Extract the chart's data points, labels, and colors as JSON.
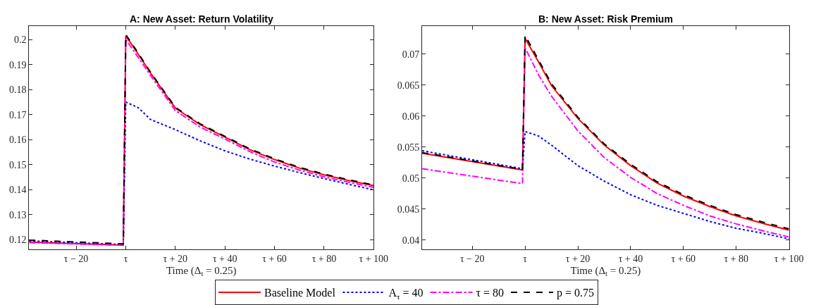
{
  "chart_data": [
    {
      "type": "line",
      "title": "A: New Asset: Return Volatility",
      "xlabel": "Time (Δ$_{t}$ = 0.25)",
      "xlim": [
        -39,
        100
      ],
      "xticks": [
        {
          "value": -20,
          "label": "τ − 20"
        },
        {
          "value": 0,
          "label": "τ"
        },
        {
          "value": 20,
          "label": "τ + 20"
        },
        {
          "value": 40,
          "label": "τ + 40"
        },
        {
          "value": 60,
          "label": "τ + 60"
        },
        {
          "value": 80,
          "label": "τ + 80"
        },
        {
          "value": 100,
          "label": "τ + 100"
        }
      ],
      "ylim": [
        0.1161,
        0.2054
      ],
      "yticks": [
        0.12,
        0.13,
        0.14,
        0.15,
        0.16,
        0.17,
        0.18,
        0.19,
        0.2
      ],
      "x": [
        -39,
        -1,
        0,
        5,
        10,
        20,
        30,
        40,
        50,
        60,
        70,
        80,
        90,
        100
      ],
      "legend": "bottom",
      "marker": "none",
      "series": [
        {
          "name": "Baseline Model",
          "color": "#ff0000",
          "line_style": "solid",
          "values": [
            0.119,
            0.1178,
            0.2015,
            0.1942,
            0.1866,
            0.1726,
            0.166,
            0.161,
            0.156,
            0.152,
            0.1486,
            0.1459,
            0.1436,
            0.1416
          ]
        },
        {
          "name": "A$_{τ}$ = 40",
          "color": "#0000ff",
          "line_style": "dotted",
          "values": [
            0.1195,
            0.118,
            0.175,
            0.1728,
            0.168,
            0.164,
            0.1595,
            0.1555,
            0.1522,
            0.1494,
            0.1468,
            0.1444,
            0.1421,
            0.1399
          ]
        },
        {
          "name": "τ = 80",
          "color": "#ff00ff",
          "line_style": "dashdot",
          "values": [
            0.1188,
            0.1177,
            0.2,
            0.1929,
            0.1856,
            0.1716,
            0.165,
            0.1602,
            0.1552,
            0.151,
            0.1478,
            0.1451,
            0.1429,
            0.1409
          ]
        },
        {
          "name": "p = 0.75",
          "color": "#000000",
          "line_style": "dashed",
          "values": [
            0.1198,
            0.1183,
            0.202,
            0.1946,
            0.1869,
            0.1729,
            0.1663,
            0.1613,
            0.1563,
            0.1523,
            0.1489,
            0.1462,
            0.1439,
            0.1418
          ]
        }
      ]
    },
    {
      "type": "line",
      "title": "B: New Asset: Risk Premium",
      "xlabel": "Time (Δ$_{t}$ = 0.25)",
      "xlim": [
        -39,
        100
      ],
      "xticks": [
        {
          "value": -20,
          "label": "τ − 20"
        },
        {
          "value": 0,
          "label": "τ"
        },
        {
          "value": 20,
          "label": "τ + 20"
        },
        {
          "value": 40,
          "label": "τ + 40"
        },
        {
          "value": 60,
          "label": "τ + 60"
        },
        {
          "value": 80,
          "label": "τ + 80"
        },
        {
          "value": 100,
          "label": "τ + 100"
        }
      ],
      "ylim": [
        0.0385,
        0.0745
      ],
      "yticks": [
        0.04,
        0.045,
        0.05,
        0.055,
        0.06,
        0.065,
        0.07
      ],
      "x": [
        -39,
        -1,
        0,
        5,
        10,
        20,
        30,
        40,
        50,
        60,
        70,
        80,
        90,
        100
      ],
      "marker": "none",
      "series": [
        {
          "color": "#ff0000",
          "line_style": "solid",
          "values": [
            0.054,
            0.0513,
            0.0725,
            0.0688,
            0.0649,
            0.0596,
            0.0553,
            0.052,
            0.0492,
            0.0471,
            0.0454,
            0.0439,
            0.0427,
            0.0416
          ]
        },
        {
          "color": "#0000ff",
          "line_style": "dotted",
          "values": [
            0.0544,
            0.0515,
            0.0575,
            0.0568,
            0.0553,
            0.052,
            0.0495,
            0.0473,
            0.0456,
            0.0443,
            0.043,
            0.0419,
            0.0411,
            0.0402
          ]
        },
        {
          "color": "#ff00ff",
          "line_style": "dashdot",
          "values": [
            0.0515,
            0.0491,
            0.071,
            0.0667,
            0.0632,
            0.0576,
            0.0533,
            0.0501,
            0.0475,
            0.0456,
            0.0439,
            0.0426,
            0.0415,
            0.0405
          ]
        },
        {
          "color": "#000000",
          "line_style": "dashed",
          "values": [
            0.0541,
            0.0514,
            0.073,
            0.0691,
            0.0652,
            0.0598,
            0.0555,
            0.0522,
            0.0494,
            0.0473,
            0.0456,
            0.0441,
            0.0429,
            0.0418
          ]
        }
      ]
    }
  ]
}
